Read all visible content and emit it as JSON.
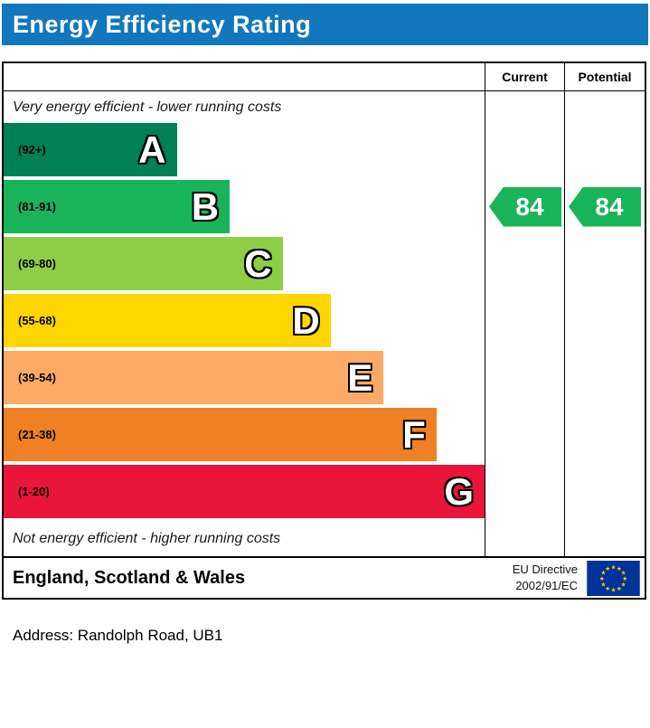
{
  "header": {
    "title": "Energy Efficiency Rating",
    "bg_color": "#1377bd"
  },
  "table": {
    "current_label": "Current",
    "potential_label": "Potential",
    "top_note": "Very energy efficient - lower running costs",
    "bottom_note": "Not energy efficient - higher running costs"
  },
  "chart_data": {
    "type": "bar",
    "title": "Energy Efficiency Rating",
    "categories": [
      "A",
      "B",
      "C",
      "D",
      "E",
      "F",
      "G"
    ],
    "band_ranges": [
      "(92+)",
      "(81-91)",
      "(69-80)",
      "(55-68)",
      "(39-54)",
      "(21-38)",
      "(1-20)"
    ],
    "band_colors": [
      "#008054",
      "#19b459",
      "#8dce46",
      "#ffd500",
      "#fcaa65",
      "#ef8023",
      "#e9153b"
    ],
    "band_widths_pct": [
      36,
      47,
      58,
      68,
      79,
      90,
      100
    ],
    "band_min_values": [
      92,
      81,
      69,
      55,
      39,
      21,
      1
    ],
    "current": 84,
    "potential": 84,
    "current_band": "B",
    "potential_band": "B",
    "legend_position": "none",
    "grid": false
  },
  "footer": {
    "region": "England, Scotland & Wales",
    "directive_line1": "EU Directive",
    "directive_line2": "2002/91/EC",
    "flag_blue": "#003399",
    "flag_star_color": "#ffcc00"
  },
  "address_line": "Address: Randolph Road, UB1"
}
